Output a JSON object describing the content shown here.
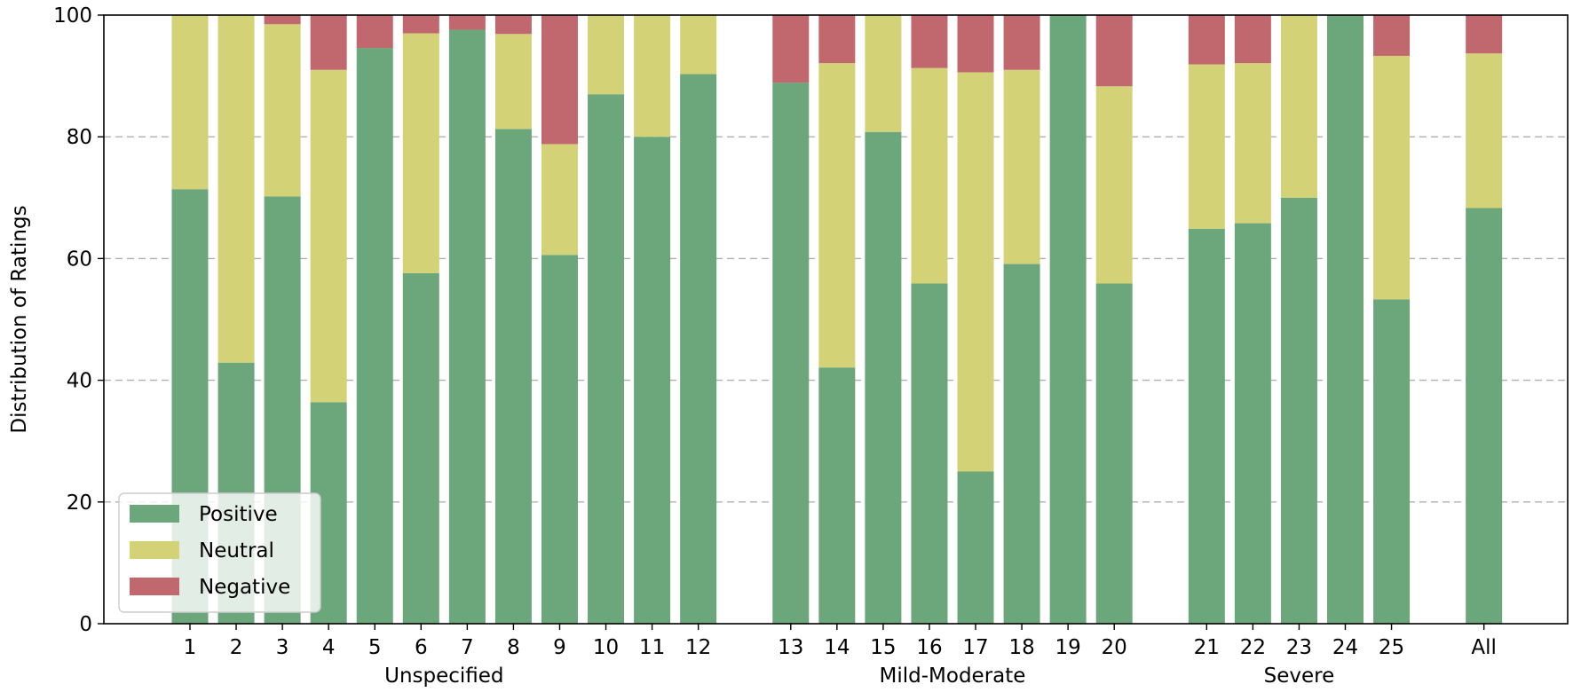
{
  "chart_data": {
    "type": "bar",
    "stacked": true,
    "title": "",
    "xlabel": "",
    "ylabel": "Distribution of Ratings",
    "ylim": [
      0,
      100
    ],
    "yticks": [
      0,
      20,
      40,
      60,
      80,
      100
    ],
    "grid": "horizontal dashed",
    "legend_position": "lower-left",
    "categories": [
      "1",
      "2",
      "3",
      "4",
      "5",
      "6",
      "7",
      "8",
      "9",
      "10",
      "11",
      "12",
      "13",
      "14",
      "15",
      "16",
      "17",
      "18",
      "19",
      "20",
      "21",
      "22",
      "23",
      "24",
      "25",
      "All"
    ],
    "groups": [
      {
        "label": "Unspecified",
        "categories": [
          "1",
          "2",
          "3",
          "4",
          "5",
          "6",
          "7",
          "8",
          "9",
          "10",
          "11",
          "12"
        ]
      },
      {
        "label": "Mild-Moderate",
        "categories": [
          "13",
          "14",
          "15",
          "16",
          "17",
          "18",
          "19",
          "20"
        ]
      },
      {
        "label": "Severe",
        "categories": [
          "21",
          "22",
          "23",
          "24",
          "25"
        ]
      },
      {
        "label": "",
        "categories": [
          "All"
        ]
      }
    ],
    "series": [
      {
        "name": "Positive",
        "color": "#6ca77c",
        "values": [
          71.4,
          42.9,
          70.2,
          36.4,
          94.6,
          57.6,
          97.6,
          81.3,
          60.6,
          87.0,
          80.0,
          90.3,
          88.9,
          42.1,
          80.8,
          55.9,
          25.0,
          59.1,
          100.0,
          55.9,
          64.9,
          65.8,
          70.0,
          100.0,
          53.3,
          68.3
        ]
      },
      {
        "name": "Neutral",
        "color": "#d4d276",
        "values": [
          28.6,
          57.1,
          28.3,
          54.6,
          0.0,
          39.4,
          0.0,
          15.6,
          18.2,
          13.0,
          20.0,
          9.7,
          0.0,
          50.0,
          19.2,
          35.4,
          65.6,
          31.9,
          0.0,
          32.4,
          27.0,
          26.3,
          30.0,
          0.0,
          40.0,
          25.4
        ]
      },
      {
        "name": "Negative",
        "color": "#c1686e",
        "values": [
          0.0,
          0.0,
          1.5,
          9.0,
          5.4,
          3.0,
          2.4,
          3.1,
          21.2,
          0.0,
          0.0,
          0.0,
          11.1,
          7.9,
          0.0,
          8.7,
          9.4,
          9.0,
          0.0,
          11.7,
          8.1,
          7.9,
          0.0,
          0.0,
          6.7,
          6.3
        ]
      }
    ]
  }
}
